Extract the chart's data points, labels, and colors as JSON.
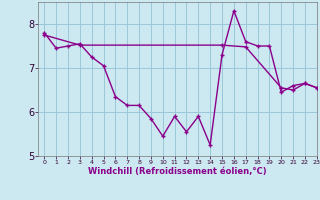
{
  "line1_x": [
    0,
    1,
    2,
    3,
    4,
    5,
    6,
    7,
    8,
    9,
    10,
    11,
    12,
    13,
    14,
    15,
    16,
    17,
    18,
    19,
    20,
    21,
    22,
    23
  ],
  "line1_y": [
    7.8,
    7.45,
    7.5,
    7.55,
    7.25,
    7.05,
    6.35,
    6.15,
    6.15,
    5.85,
    5.45,
    5.9,
    5.55,
    5.9,
    5.25,
    7.3,
    8.3,
    7.6,
    7.5,
    7.5,
    6.45,
    6.6,
    6.65,
    6.55
  ],
  "line2_x": [
    0,
    3,
    15,
    17,
    20,
    21,
    22,
    23
  ],
  "line2_y": [
    7.75,
    7.52,
    7.52,
    7.48,
    6.55,
    6.5,
    6.65,
    6.55
  ],
  "line_color": "#8B008B",
  "background_color": "#cce8f0",
  "grid_color": "#9ac8d8",
  "xlabel": "Windchill (Refroidissement éolien,°C)",
  "xlim": [
    -0.5,
    23
  ],
  "ylim": [
    5.0,
    8.5
  ],
  "yticks": [
    5,
    6,
    7,
    8
  ],
  "xticks": [
    0,
    1,
    2,
    3,
    4,
    5,
    6,
    7,
    8,
    9,
    10,
    11,
    12,
    13,
    14,
    15,
    16,
    17,
    18,
    19,
    20,
    21,
    22,
    23
  ]
}
